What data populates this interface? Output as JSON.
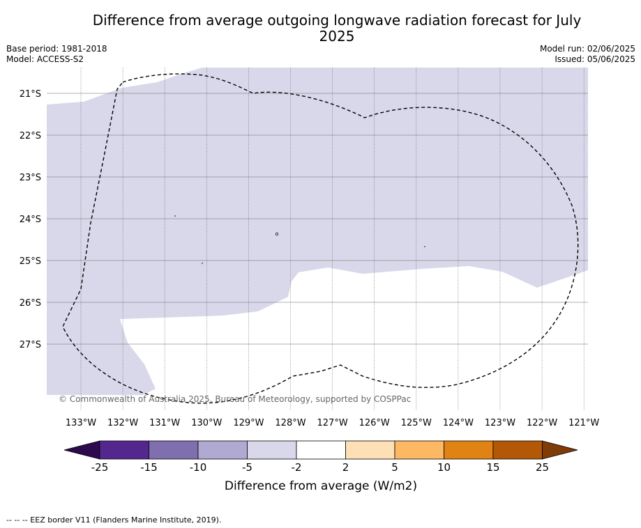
{
  "title": "Difference from average outgoing longwave radiation forecast for July 2025",
  "base_period": "Base period: 1981-2018",
  "model": "Model: ACCESS-S2",
  "model_run": "Model run: 02/06/2025",
  "issued": "Issued: 05/06/2025",
  "copyright": "© Commonwealth of Australia 2025, Bureau of Meteorology, supported by COSPPac",
  "footer_note": "--  --  -- EEZ border V11 (Flanders Marine Institute, 2019).",
  "map": {
    "lon_labels": [
      "133°W",
      "132°W",
      "131°W",
      "130°W",
      "129°W",
      "128°W",
      "127°W",
      "126°W",
      "125°W",
      "124°W",
      "123°W",
      "122°W",
      "121°W"
    ],
    "lat_labels": [
      "21°S",
      "22°S",
      "23°S",
      "24°S",
      "25°S",
      "26°S",
      "27°S"
    ],
    "shaded_range": "-5 to -2",
    "eez_border": "dashed"
  },
  "colorbar": {
    "label": "Difference from average (W/m2)",
    "tick_labels": [
      "-25",
      "-15",
      "-10",
      "-5",
      "-2",
      "2",
      "5",
      "10",
      "15",
      "25"
    ],
    "colors": [
      "#2d0a4e",
      "#54278f",
      "#7f6faf",
      "#b0a9d2",
      "#d8d8ea",
      "#ffffff",
      "#fee0b6",
      "#fdb863",
      "#e08214",
      "#b35806",
      "#7f3b08"
    ]
  }
}
